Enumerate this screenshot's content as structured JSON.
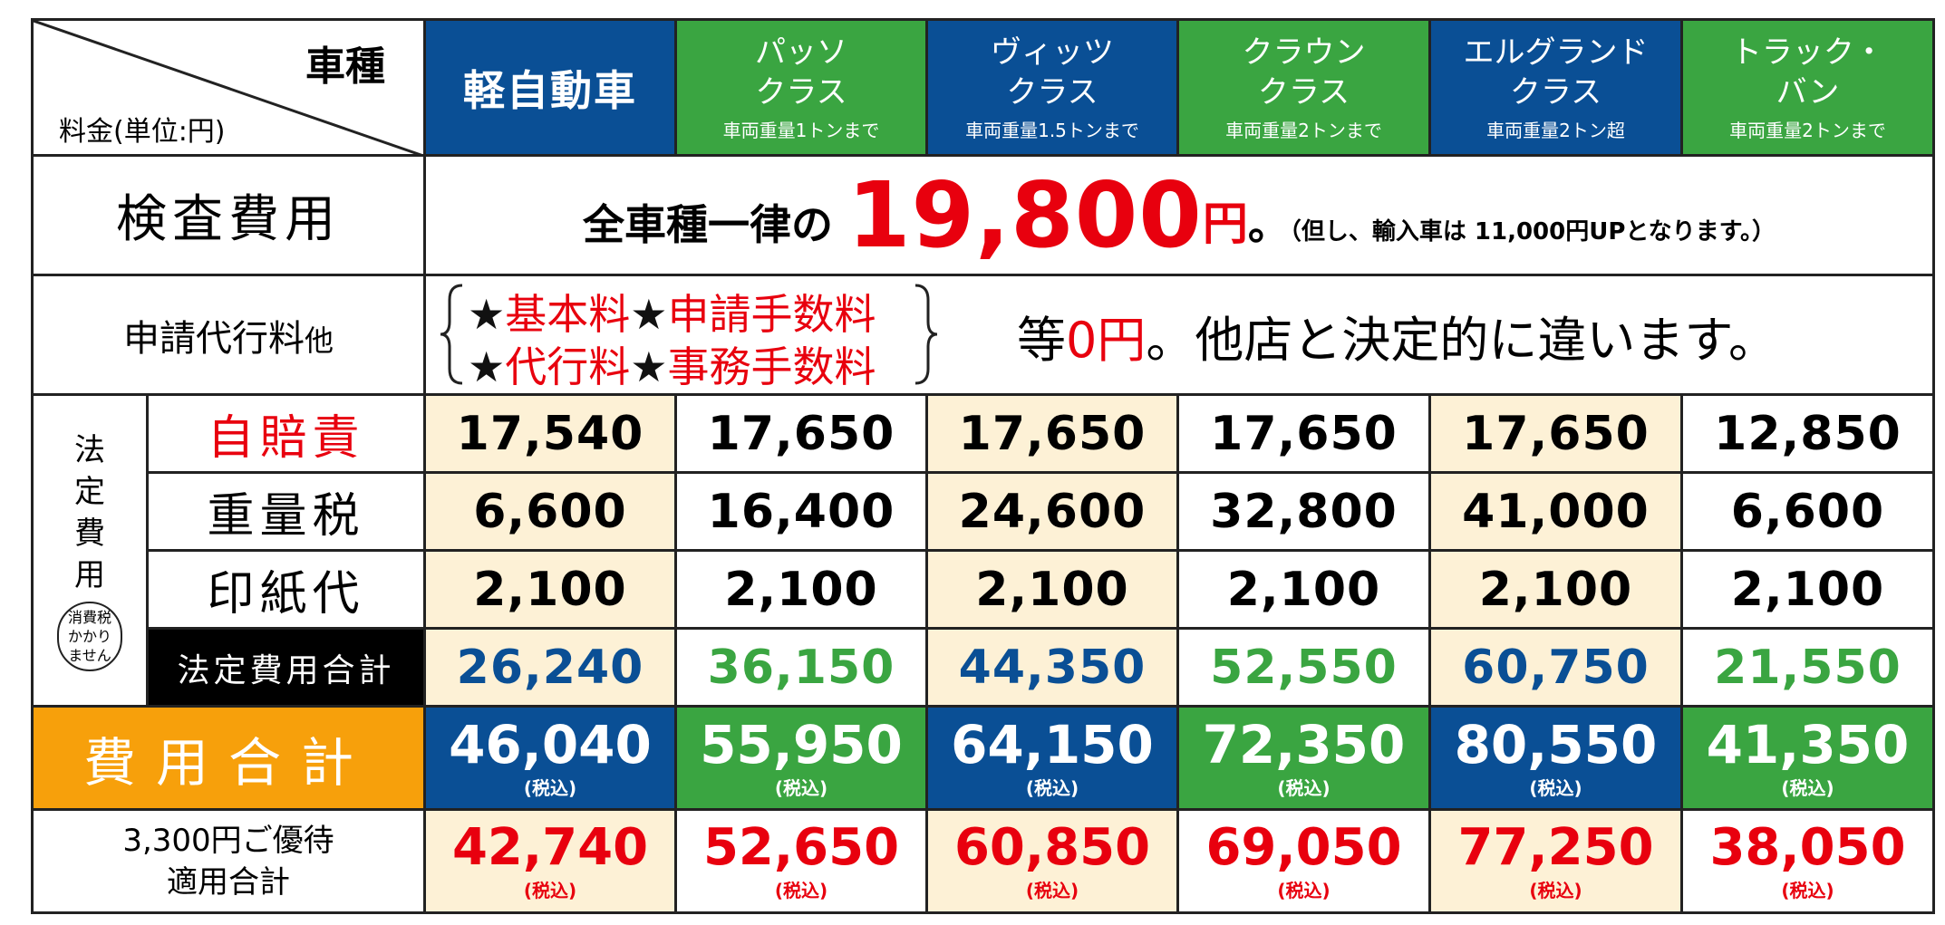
{
  "corner": {
    "vehicle_type": "車種",
    "fee_unit": "料金(単位:円)"
  },
  "columns": [
    {
      "name": "軽自動車",
      "sub": ""
    },
    {
      "name": "パッソ\nクラス",
      "sub": "車両重量1トンまで"
    },
    {
      "name": "ヴィッツ\nクラス",
      "sub": "車両重量1.5トンまで"
    },
    {
      "name": "クラウン\nクラス",
      "sub": "車両重量2トンまで"
    },
    {
      "name": "エルグランド\nクラス",
      "sub": "車両重量2トン超"
    },
    {
      "name": "トラック・\nバン",
      "sub": "車両重量2トンまで"
    }
  ],
  "column_colors": [
    "#0a4f95",
    "#3aa541"
  ],
  "inspection": {
    "label": "検査費用",
    "lead": "全車種一律の",
    "amount": "19,800",
    "yen": "円",
    "period": "。",
    "note": "（但し、輸入車は 11,000円UPとなります。）"
  },
  "agency": {
    "label": "申請代行料",
    "label_small": "他",
    "line1": [
      "★",
      "基本料",
      "★",
      "申請手数料"
    ],
    "line2": [
      "★",
      "代行料",
      "★",
      "事務手数料"
    ],
    "free_pre": "等",
    "free_zero": "0円",
    "free_post": "。他店と決定的に違います。"
  },
  "statutory": {
    "group_label": [
      "法",
      "定",
      "費",
      "用"
    ],
    "tax_note": [
      "消費税",
      "かかり",
      "ません"
    ],
    "rows": [
      {
        "label": "自賠責",
        "values": [
          "17,540",
          "17,650",
          "17,650",
          "17,650",
          "17,650",
          "12,850"
        ]
      },
      {
        "label": "重量税",
        "values": [
          "6,600",
          "16,400",
          "24,600",
          "32,800",
          "41,000",
          "6,600"
        ]
      },
      {
        "label": "印紙代",
        "values": [
          "2,100",
          "2,100",
          "2,100",
          "2,100",
          "2,100",
          "2,100"
        ]
      }
    ],
    "subtotal_label": "法定費用合計",
    "subtotal_values": [
      "26,240",
      "36,150",
      "44,350",
      "52,550",
      "60,750",
      "21,550"
    ]
  },
  "total": {
    "label": "費用合計",
    "values": [
      "46,040",
      "55,950",
      "64,150",
      "72,350",
      "80,550",
      "41,350"
    ],
    "tax_label": "(税込)"
  },
  "discount": {
    "label_line1": "3,300円ご優待",
    "label_line2": "適用合計",
    "values": [
      "42,740",
      "52,650",
      "60,850",
      "69,050",
      "77,250",
      "38,050"
    ],
    "tax_label": "(税込)"
  }
}
